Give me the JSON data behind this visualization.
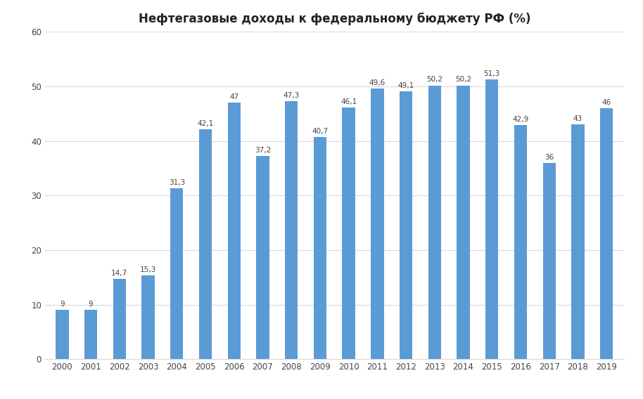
{
  "title": "Нефтегазовые доходы к федеральному бюджету РФ (%)",
  "years": [
    2000,
    2001,
    2002,
    2003,
    2004,
    2005,
    2006,
    2007,
    2008,
    2009,
    2010,
    2011,
    2012,
    2013,
    2014,
    2015,
    2016,
    2017,
    2018,
    2019
  ],
  "values": [
    9.0,
    9.0,
    14.7,
    15.3,
    31.3,
    42.1,
    47.0,
    37.2,
    47.3,
    40.7,
    46.1,
    49.6,
    49.1,
    50.2,
    50.2,
    51.3,
    42.9,
    36.0,
    43.0,
    46.0
  ],
  "labels": [
    "9",
    "9",
    "14,7",
    "15,3",
    "31,3",
    "42,1",
    "47",
    "37,2",
    "47,3",
    "40,7",
    "46,1",
    "49,6",
    "49,1",
    "50,2",
    "50,2",
    "51,3",
    "42,9",
    "36",
    "43",
    "46"
  ],
  "bar_color": "#5b9bd5",
  "background_color": "#ffffff",
  "ylim": [
    0,
    60
  ],
  "yticks": [
    0,
    10,
    20,
    30,
    40,
    50,
    60
  ],
  "grid_color": "#d9d9d9",
  "title_fontsize": 12,
  "label_fontsize": 7.5,
  "tick_fontsize": 8.5,
  "bar_width": 0.45
}
